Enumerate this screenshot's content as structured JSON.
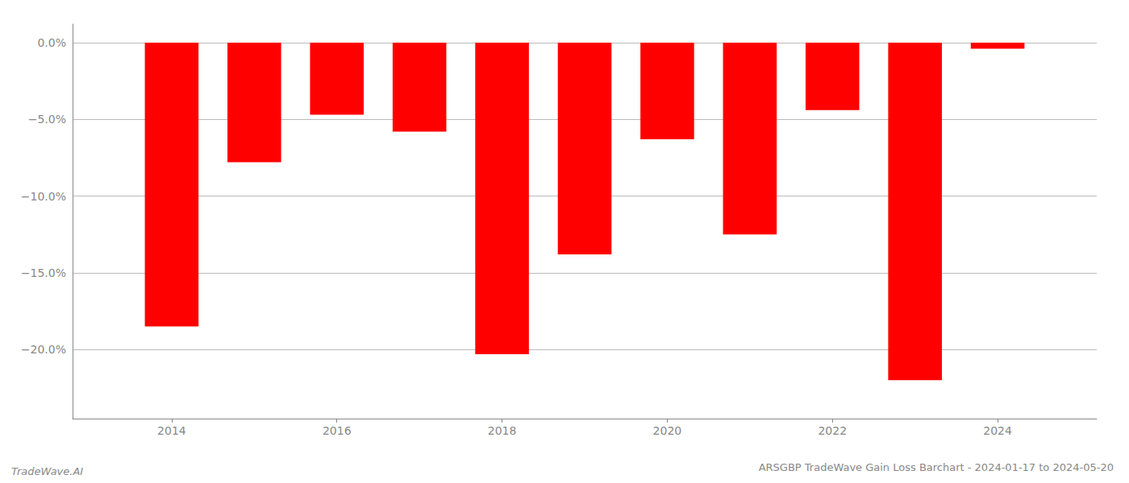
{
  "chart_data": {
    "type": "bar",
    "title": "ARSGBP TradeWave Gain Loss Barchart - 2024-01-17 to 2024-05-20",
    "annotations": [
      "TradeWave.AI"
    ],
    "x": [
      2014,
      2015,
      2016,
      2017,
      2018,
      2019,
      2020,
      2021,
      2022,
      2023,
      2024
    ],
    "values": [
      -18.5,
      -7.8,
      -4.7,
      -5.8,
      -20.3,
      -13.8,
      -6.3,
      -12.5,
      -4.4,
      -22.0,
      -0.4
    ],
    "color": "#ff0000",
    "xlim": [
      2012.8,
      2025.2
    ],
    "xticks": [
      2014,
      2016,
      2018,
      2020,
      2022,
      2024
    ],
    "ylim": [
      -24.5,
      1.2
    ],
    "yticks": [
      {
        "value": 0.0,
        "label": "0.0%"
      },
      {
        "value": -5.0,
        "label": "−5.0%"
      },
      {
        "value": -10.0,
        "label": "−10.0%"
      },
      {
        "value": -15.0,
        "label": "−15.0%"
      },
      {
        "value": -20.0,
        "label": "−20.0%"
      }
    ],
    "grid": true
  }
}
